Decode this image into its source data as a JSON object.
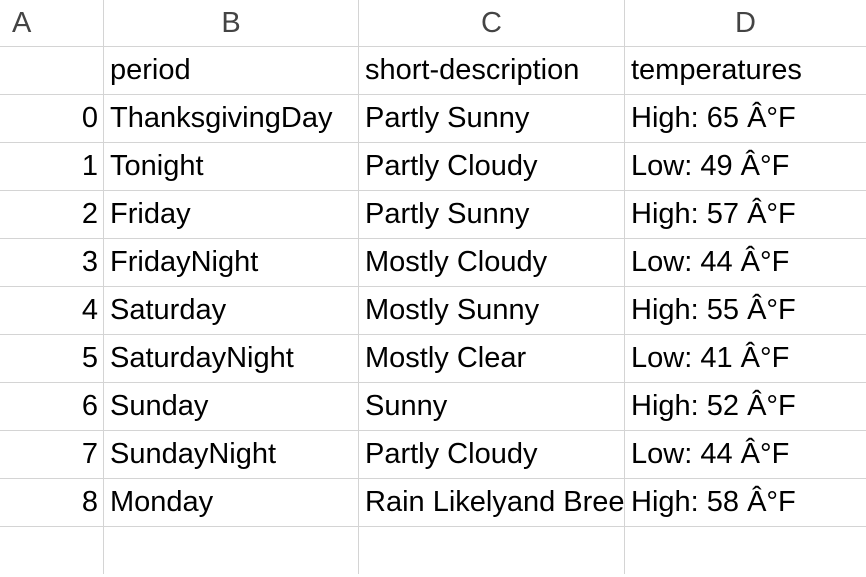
{
  "columns": [
    "A",
    "B",
    "C",
    "D"
  ],
  "header_row": {
    "index": "",
    "period": "period",
    "short_description": "short-description",
    "temperatures": "temperatures"
  },
  "rows": [
    {
      "index": "0",
      "period": "ThanksgivingDay",
      "short_description": "Partly Sunny",
      "temperatures": "High: 65 Â°F"
    },
    {
      "index": "1",
      "period": "Tonight",
      "short_description": "Partly Cloudy",
      "temperatures": "Low: 49 Â°F"
    },
    {
      "index": "2",
      "period": "Friday",
      "short_description": "Partly Sunny",
      "temperatures": "High: 57 Â°F"
    },
    {
      "index": "3",
      "period": "FridayNight",
      "short_description": "Mostly Cloudy",
      "temperatures": "Low: 44 Â°F"
    },
    {
      "index": "4",
      "period": "Saturday",
      "short_description": "Mostly Sunny",
      "temperatures": "High: 55 Â°F"
    },
    {
      "index": "5",
      "period": "SaturdayNight",
      "short_description": "Mostly Clear",
      "temperatures": "Low: 41 Â°F"
    },
    {
      "index": "6",
      "period": "Sunday",
      "short_description": "Sunny",
      "temperatures": "High: 52 Â°F"
    },
    {
      "index": "7",
      "period": "SundayNight",
      "short_description": "Partly Cloudy",
      "temperatures": "Low: 44 Â°F"
    },
    {
      "index": "8",
      "period": "Monday",
      "short_description": "Rain Likelyand Breezy",
      "temperatures": "High: 58 Â°F"
    }
  ]
}
